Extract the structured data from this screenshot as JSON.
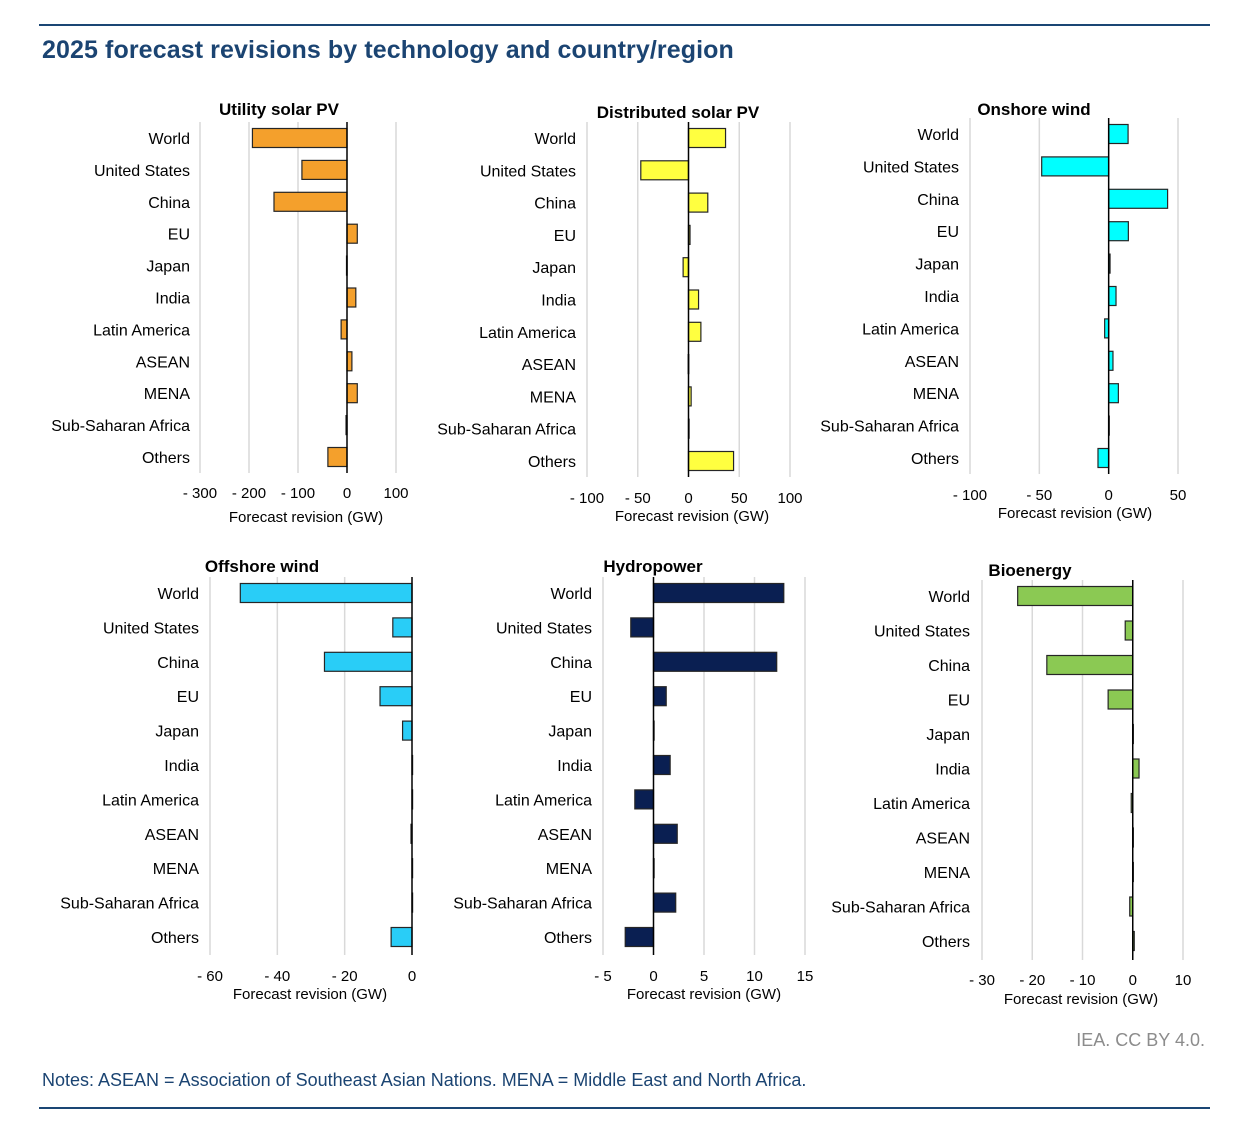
{
  "header": {
    "title": "2025 forecast revisions by technology and country/region"
  },
  "footer": {
    "credit": "IEA. CC BY 4.0.",
    "notes": "Notes: ASEAN = Association of Southeast Asian Nations. MENA = Middle East and North Africa."
  },
  "chart_data": [
    {
      "type": "bar",
      "orientation": "horizontal",
      "title": "Utility solar PV",
      "xlabel": "Forecast revision (GW)",
      "ylabel": "",
      "categories": [
        "World",
        "United States",
        "China",
        "EU",
        "Japan",
        "India",
        "Latin America",
        "ASEAN",
        "MENA",
        "Sub-Saharan Africa",
        "Others"
      ],
      "values": [
        -193,
        -92,
        -149,
        21,
        -1,
        18,
        -12,
        10,
        21,
        -2,
        -39
      ],
      "xlim": [
        -300,
        100
      ],
      "xticks": [
        -300,
        -200,
        -100,
        0,
        100
      ],
      "xtick_labels": [
        "- 300",
        "- 200",
        "- 100",
        "0",
        "100"
      ],
      "color": "#f4a02c",
      "grid": true
    },
    {
      "type": "bar",
      "orientation": "horizontal",
      "title": "Distributed solar PV",
      "xlabel": "Forecast revision (GW)",
      "ylabel": "",
      "categories": [
        "World",
        "United States",
        "China",
        "EU",
        "Japan",
        "India",
        "Latin America",
        "ASEAN",
        "MENA",
        "Sub-Saharan Africa",
        "Others"
      ],
      "values": [
        36.5,
        -47,
        19,
        1.5,
        -5.3,
        9.9,
        12.2,
        -0.3,
        2.6,
        0.1,
        44.4
      ],
      "xlim": [
        -100,
        100
      ],
      "xticks": [
        -100,
        -50,
        0,
        50,
        100
      ],
      "xtick_labels": [
        "- 100",
        "- 50",
        "0",
        "50",
        "100"
      ],
      "color": "#ffff40",
      "grid": true
    },
    {
      "type": "bar",
      "orientation": "horizontal",
      "title": "Onshore wind",
      "xlabel": "Forecast revision (GW)",
      "ylabel": "",
      "categories": [
        "World",
        "United States",
        "China",
        "EU",
        "Japan",
        "India",
        "Latin America",
        "ASEAN",
        "MENA",
        "Sub-Saharan Africa",
        "Others"
      ],
      "values": [
        14,
        -48.3,
        42.5,
        14.2,
        1,
        5.3,
        -2.9,
        3.1,
        7,
        0.2,
        -7.7
      ],
      "xlim": [
        -100,
        50
      ],
      "xticks": [
        -100,
        -50,
        0,
        50
      ],
      "xtick_labels": [
        "- 100",
        "- 50",
        "0",
        "50"
      ],
      "color": "#00ffff",
      "grid": true
    },
    {
      "type": "bar",
      "orientation": "horizontal",
      "title": "Offshore wind",
      "xlabel": "Forecast revision (GW)",
      "ylabel": "",
      "categories": [
        "World",
        "United States",
        "China",
        "EU",
        "Japan",
        "India",
        "Latin America",
        "ASEAN",
        "MENA",
        "Sub-Saharan Africa",
        "Others"
      ],
      "values": [
        -51,
        -5.7,
        -26,
        -9.5,
        -2.8,
        0,
        0,
        -0.3,
        0,
        0,
        -6.2
      ],
      "xlim": [
        -60,
        0
      ],
      "xticks": [
        -60,
        -40,
        -20,
        0
      ],
      "xtick_labels": [
        "- 60",
        "- 40",
        "- 20",
        "0"
      ],
      "color": "#29cdf7",
      "grid": true
    },
    {
      "type": "bar",
      "orientation": "horizontal",
      "title": "Hydropower",
      "xlabel": "Forecast revision (GW)",
      "ylabel": "",
      "categories": [
        "World",
        "United States",
        "China",
        "EU",
        "Japan",
        "India",
        "Latin America",
        "ASEAN",
        "MENA",
        "Sub-Saharan Africa",
        "Others"
      ],
      "values": [
        12.9,
        -2.25,
        12.2,
        1.26,
        0.05,
        1.65,
        -1.85,
        2.35,
        0.05,
        2.2,
        -2.8
      ],
      "xlim": [
        -5,
        15
      ],
      "xticks": [
        -5,
        0,
        5,
        10,
        15
      ],
      "xtick_labels": [
        "- 5",
        "0",
        "5",
        "10",
        "15"
      ],
      "color": "#0a1f52",
      "grid": true
    },
    {
      "type": "bar",
      "orientation": "horizontal",
      "title": "Bioenergy",
      "xlabel": "Forecast revision (GW)",
      "ylabel": "",
      "categories": [
        "World",
        "United States",
        "China",
        "EU",
        "Japan",
        "India",
        "Latin America",
        "ASEAN",
        "MENA",
        "Sub-Saharan Africa",
        "Others"
      ],
      "values": [
        -22.9,
        -1.5,
        -17.1,
        -4.9,
        0.05,
        1.25,
        -0.3,
        0.1,
        0,
        -0.6,
        0.3
      ],
      "xlim": [
        -30,
        10
      ],
      "xticks": [
        -30,
        -20,
        -10,
        0,
        10
      ],
      "xtick_labels": [
        "- 30",
        "- 20",
        "- 10",
        "0",
        "10"
      ],
      "color": "#8bc953",
      "grid": true
    }
  ]
}
